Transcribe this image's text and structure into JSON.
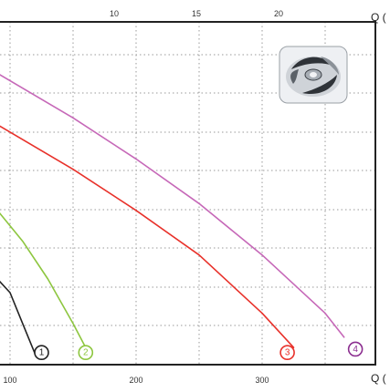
{
  "chart_data": {
    "type": "line",
    "title": "",
    "xlabel_bottom": "Q (",
    "xlabel_top": "Q (",
    "x_bottom_ticks": [
      "100",
      "200",
      "300"
    ],
    "x_top_ticks": [
      "10",
      "15",
      "20"
    ],
    "xlim": [
      90,
      400
    ],
    "ylim": [
      0,
      100
    ],
    "grid": "dotted",
    "inset": "impeller-image",
    "series": [
      {
        "name": "1",
        "color": "#222222",
        "x": [
          90,
          100,
          110,
          120
        ],
        "y": [
          25,
          21,
          12,
          3
        ]
      },
      {
        "name": "2",
        "color": "#8DC63F",
        "x": [
          90,
          110,
          130,
          150,
          160
        ],
        "y": [
          45,
          36,
          25,
          12,
          5
        ]
      },
      {
        "name": "3",
        "color": "#E8312A",
        "x": [
          90,
          150,
          200,
          250,
          300,
          325
        ],
        "y": [
          70,
          57,
          45,
          32,
          15,
          5
        ]
      },
      {
        "name": "4",
        "color": "#C668B8",
        "x": [
          90,
          150,
          200,
          250,
          300,
          350,
          365
        ],
        "y": [
          85,
          72,
          60,
          47,
          32,
          15,
          8
        ]
      }
    ],
    "markers": [
      {
        "label": "1",
        "x": 125,
        "y": 3,
        "color": "#222222"
      },
      {
        "label": "2",
        "x": 160,
        "y": 3,
        "color": "#8DC63F"
      },
      {
        "label": "3",
        "x": 320,
        "y": 3,
        "color": "#E8312A"
      },
      {
        "label": "4",
        "x": 374,
        "y": 4,
        "color": "#8B2D8F"
      }
    ]
  }
}
